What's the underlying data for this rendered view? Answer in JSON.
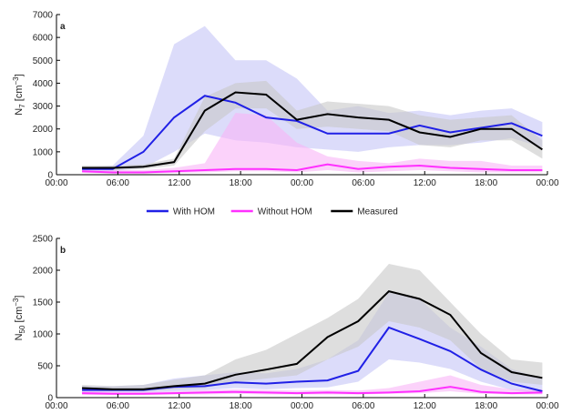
{
  "chart_data": [
    {
      "type": "line",
      "panel_label": "a",
      "ylabel": {
        "base": "N",
        "sub": "7",
        "unit": " [cm",
        "sup": "−3",
        "close": "]"
      },
      "x": [
        2.5,
        5.5,
        8.5,
        11.5,
        14.5,
        17.5,
        20.5,
        23.5,
        26.5,
        29.5,
        32.5,
        35.5,
        38.5,
        41.5,
        44.5,
        47.5
      ],
      "xlim": [
        0,
        48
      ],
      "xticks": [
        {
          "value": 0,
          "label": "00:00"
        },
        {
          "value": 6,
          "label": "06:00"
        },
        {
          "value": 12,
          "label": "12:00"
        },
        {
          "value": 18,
          "label": "18:00"
        },
        {
          "value": 24,
          "label": "00:00"
        },
        {
          "value": 30,
          "label": "06:00"
        },
        {
          "value": 36,
          "label": "12:00"
        },
        {
          "value": 42,
          "label": "18:00"
        },
        {
          "value": 48,
          "label": "00:00"
        }
      ],
      "ylim": [
        0,
        7000
      ],
      "yticks": [
        0,
        1000,
        2000,
        3000,
        4000,
        5000,
        6000,
        7000
      ],
      "series": [
        {
          "name": "With HOM",
          "color": "#2020e6",
          "band_color": "#c4c4f6",
          "values": [
            250,
            250,
            1000,
            2500,
            3450,
            3150,
            2500,
            2350,
            1800,
            1800,
            1800,
            2150,
            1850,
            2050,
            2250,
            1700
          ],
          "band_lower": [
            200,
            150,
            300,
            1000,
            1800,
            1500,
            1400,
            1200,
            1100,
            1000,
            1200,
            1300,
            1300,
            1400,
            1600,
            1200
          ],
          "band_upper": [
            300,
            400,
            1700,
            5700,
            6500,
            5000,
            5000,
            4200,
            2800,
            3000,
            2700,
            2800,
            2600,
            2800,
            2900,
            2300
          ]
        },
        {
          "name": "Without HOM",
          "color": "#ff30ff",
          "band_color": "#f8b4f6",
          "values": [
            150,
            100,
            100,
            150,
            200,
            250,
            250,
            200,
            450,
            250,
            350,
            400,
            300,
            250,
            200,
            200
          ],
          "band_lower": [
            80,
            50,
            50,
            80,
            100,
            150,
            150,
            100,
            200,
            100,
            150,
            200,
            150,
            100,
            100,
            100
          ],
          "band_upper": [
            250,
            200,
            200,
            300,
            500,
            2700,
            2600,
            1400,
            800,
            600,
            500,
            700,
            600,
            600,
            400,
            400
          ]
        },
        {
          "name": "Measured",
          "color": "#000000",
          "band_color": "#c8c8c8",
          "values": [
            300,
            300,
            350,
            550,
            2800,
            3600,
            3500,
            2400,
            2650,
            2500,
            2400,
            1850,
            1650,
            2000,
            2000,
            1100
          ],
          "band_lower": [
            200,
            200,
            250,
            400,
            1900,
            2900,
            2900,
            2000,
            2100,
            2000,
            1900,
            1300,
            1200,
            1500,
            1500,
            700
          ],
          "band_upper": [
            400,
            400,
            450,
            700,
            3400,
            4000,
            4100,
            2800,
            3200,
            3100,
            3000,
            2600,
            2400,
            2500,
            2600,
            1500
          ]
        }
      ]
    },
    {
      "type": "line",
      "panel_label": "b",
      "ylabel": {
        "base": "N",
        "sub": "50",
        "unit": " [cm",
        "sup": "−3",
        "close": "]"
      },
      "x": [
        2.5,
        5.5,
        8.5,
        11.5,
        14.5,
        17.5,
        20.5,
        23.5,
        26.5,
        29.5,
        32.5,
        35.5,
        38.5,
        41.5,
        44.5,
        47.5
      ],
      "xlim": [
        0,
        48
      ],
      "xticks": [
        {
          "value": 0,
          "label": "00:00"
        },
        {
          "value": 6,
          "label": "06:00"
        },
        {
          "value": 12,
          "label": "12:00"
        },
        {
          "value": 18,
          "label": "18:00"
        },
        {
          "value": 24,
          "label": "00:00"
        },
        {
          "value": 30,
          "label": "06:00"
        },
        {
          "value": 36,
          "label": "12:00"
        },
        {
          "value": 42,
          "label": "18:00"
        },
        {
          "value": 48,
          "label": "00:00"
        }
      ],
      "ylim": [
        0,
        2500
      ],
      "yticks": [
        0,
        500,
        1000,
        1500,
        2000,
        2500
      ],
      "series": [
        {
          "color": "#2020e6",
          "band_color": "#c4c4f6",
          "values": [
            120,
            120,
            120,
            170,
            180,
            240,
            220,
            250,
            270,
            420,
            1100,
            920,
            730,
            440,
            220,
            100
          ],
          "band_lower": [
            80,
            80,
            80,
            100,
            120,
            150,
            130,
            150,
            160,
            250,
            600,
            550,
            450,
            250,
            120,
            60
          ],
          "band_upper": [
            180,
            180,
            200,
            300,
            350,
            400,
            380,
            450,
            600,
            900,
            1650,
            1550,
            1100,
            800,
            450,
            300
          ]
        },
        {
          "color": "#ff30ff",
          "band_color": "#f8b4f6",
          "values": [
            70,
            60,
            60,
            70,
            80,
            90,
            80,
            70,
            80,
            70,
            80,
            100,
            170,
            90,
            70,
            80
          ],
          "band_lower": [
            40,
            40,
            40,
            50,
            50,
            60,
            50,
            50,
            50,
            50,
            60,
            70,
            100,
            60,
            50,
            50
          ],
          "band_upper": [
            100,
            90,
            90,
            100,
            120,
            130,
            120,
            110,
            120,
            110,
            150,
            250,
            350,
            200,
            130,
            130
          ]
        },
        {
          "color": "#000000",
          "band_color": "#c8c8c8",
          "values": [
            150,
            130,
            130,
            180,
            220,
            360,
            440,
            530,
            950,
            1200,
            1670,
            1550,
            1300,
            700,
            400,
            310
          ],
          "band_lower": [
            100,
            100,
            100,
            130,
            150,
            250,
            300,
            350,
            600,
            800,
            1200,
            1100,
            900,
            450,
            250,
            200
          ],
          "band_upper": [
            200,
            180,
            200,
            280,
            350,
            600,
            750,
            1000,
            1250,
            1550,
            2100,
            2000,
            1500,
            1000,
            600,
            550
          ]
        }
      ]
    }
  ]
}
